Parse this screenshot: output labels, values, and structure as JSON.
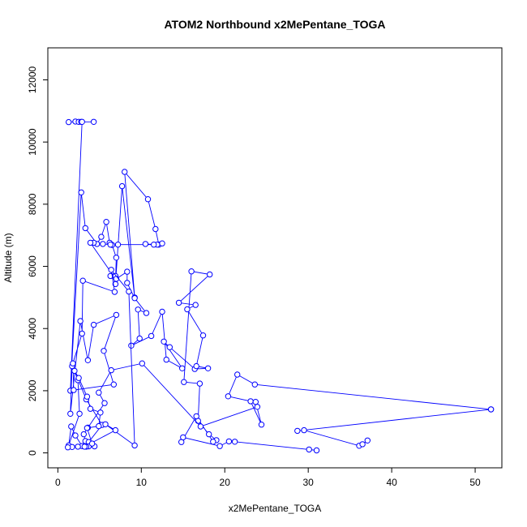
{
  "chart_data": {
    "type": "line",
    "title": "ATOM2 Northbound x2MePentane_TOGA",
    "xlabel": "x2MePentane_TOGA",
    "ylabel": "Altitude (m)",
    "xlim": [
      -1.2,
      53.2
    ],
    "ylim": [
      -480,
      13030
    ],
    "xticks": [
      0,
      10,
      20,
      30,
      40,
      50
    ],
    "yticks": [
      0,
      2000,
      4000,
      6000,
      8000,
      10000,
      12000
    ],
    "grid": false,
    "marker": "open-circle",
    "color": "#0000ff",
    "series": [
      {
        "values": [
          [
            1.3,
            10640
          ],
          [
            2.1,
            10660
          ],
          [
            2.5,
            10650
          ],
          [
            2.8,
            10650
          ],
          [
            4.3,
            10650
          ],
          [
            2.9,
            10650
          ],
          [
            1.5,
            2000
          ],
          [
            2.8,
            8380
          ],
          [
            3.3,
            7230
          ],
          [
            4.7,
            6720
          ],
          [
            5.2,
            6950
          ],
          [
            5.8,
            7430
          ],
          [
            6.2,
            6760
          ],
          [
            6.5,
            6690
          ],
          [
            7.0,
            6280
          ],
          [
            6.9,
            5430
          ],
          [
            7.7,
            8580
          ],
          [
            9.2,
            5000
          ],
          [
            8.0,
            9040
          ],
          [
            10.8,
            8160
          ],
          [
            11.7,
            7200
          ],
          [
            12.1,
            6700
          ],
          [
            12.5,
            6740
          ],
          [
            11.9,
            6700
          ],
          [
            10.5,
            6720
          ],
          [
            11.5,
            6700
          ],
          [
            7.2,
            6700
          ],
          [
            6.3,
            6700
          ],
          [
            5.4,
            6720
          ],
          [
            4.3,
            6760
          ],
          [
            3.9,
            6760
          ],
          [
            6.7,
            5680
          ],
          [
            6.3,
            5690
          ],
          [
            6.9,
            5690
          ],
          [
            7.0,
            5600
          ],
          [
            8.3,
            5830
          ],
          [
            8.3,
            5470
          ],
          [
            9.2,
            4980
          ],
          [
            10.6,
            4500
          ],
          [
            9.6,
            4610
          ],
          [
            9.8,
            3680
          ],
          [
            8.8,
            3450
          ],
          [
            11.2,
            3760
          ],
          [
            12.5,
            4540
          ],
          [
            13.0,
            3000
          ],
          [
            14.9,
            2720
          ],
          [
            12.7,
            3580
          ],
          [
            13.4,
            3400
          ],
          [
            16.4,
            2700
          ],
          [
            18.0,
            2720
          ],
          [
            16.6,
            2790
          ],
          [
            17.4,
            3780
          ],
          [
            15.5,
            4620
          ],
          [
            16.5,
            4760
          ],
          [
            14.5,
            4830
          ],
          [
            18.2,
            5740
          ],
          [
            16.0,
            5840
          ],
          [
            15.1,
            2280
          ],
          [
            17.0,
            2230
          ],
          [
            16.8,
            1030
          ],
          [
            18.1,
            600
          ],
          [
            19.0,
            410
          ],
          [
            18.6,
            360
          ],
          [
            16.6,
            1180
          ],
          [
            14.8,
            350
          ],
          [
            15.0,
            500
          ],
          [
            19.4,
            220
          ],
          [
            20.5,
            370
          ],
          [
            21.2,
            360
          ],
          [
            30.1,
            110
          ],
          [
            31.0,
            80
          ]
        ]
      },
      {
        "values": [
          [
            51.9,
            1400
          ],
          [
            28.7,
            710
          ],
          [
            29.5,
            730
          ],
          [
            36.1,
            230
          ],
          [
            36.5,
            280
          ],
          [
            37.1,
            400
          ]
        ]
      },
      {
        "values": [
          [
            51.9,
            1400
          ],
          [
            23.6,
            2200
          ],
          [
            21.5,
            2520
          ],
          [
            20.4,
            1820
          ],
          [
            23.1,
            1660
          ],
          [
            24.4,
            910
          ],
          [
            23.7,
            1640
          ],
          [
            23.9,
            1480
          ],
          [
            17.1,
            850
          ],
          [
            10.1,
            2880
          ],
          [
            6.4,
            2660
          ],
          [
            4.9,
            1940
          ],
          [
            5.6,
            1600
          ],
          [
            3.6,
            810
          ],
          [
            3.1,
            600
          ],
          [
            3.3,
            380
          ],
          [
            2.9,
            220
          ],
          [
            2.1,
            560
          ],
          [
            1.6,
            850
          ],
          [
            1.3,
            240
          ],
          [
            2.6,
            1260
          ],
          [
            2.4,
            2340
          ],
          [
            2.0,
            2640
          ],
          [
            3.4,
            1720
          ],
          [
            5.3,
            900
          ],
          [
            3.7,
            350
          ],
          [
            2.4,
            200
          ],
          [
            1.7,
            190
          ],
          [
            1.2,
            180
          ],
          [
            4.4,
            210
          ],
          [
            3.7,
            210
          ],
          [
            3.4,
            200
          ],
          [
            4.1,
            300
          ],
          [
            3.5,
            800
          ],
          [
            4.9,
            860
          ],
          [
            5.1,
            1300
          ],
          [
            3.9,
            1420
          ],
          [
            3.5,
            1810
          ],
          [
            2.5,
            2410
          ],
          [
            1.7,
            2790
          ],
          [
            1.5,
            1260
          ],
          [
            2.7,
            4240
          ],
          [
            3.6,
            2980
          ],
          [
            4.3,
            4120
          ],
          [
            7.0,
            4440
          ],
          [
            5.5,
            3280
          ],
          [
            6.7,
            2200
          ],
          [
            1.9,
            2020
          ],
          [
            1.8,
            2880
          ],
          [
            2.9,
            3840
          ],
          [
            3.0,
            5540
          ],
          [
            6.8,
            5180
          ],
          [
            6.4,
            5890
          ],
          [
            8.5,
            5190
          ],
          [
            9.2,
            240
          ],
          [
            5.7,
            920
          ],
          [
            6.9,
            730
          ],
          [
            3.2,
            200
          ]
        ]
      }
    ]
  }
}
